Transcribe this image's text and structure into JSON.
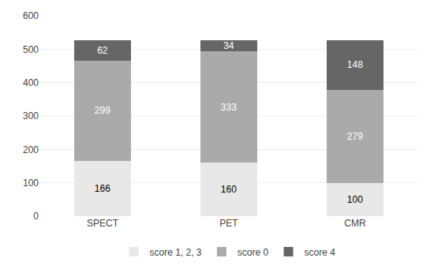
{
  "chart_data": {
    "type": "bar",
    "stacked": true,
    "data_labels": true,
    "grid": true,
    "legend": "bottom",
    "categories": [
      "SPECT",
      "PET",
      "CMR"
    ],
    "series": [
      {
        "name": "score 1, 2, 3",
        "color": "#e8e8e8",
        "values": [
          166,
          160,
          100
        ]
      },
      {
        "name": "score 0",
        "color": "#aaaaaa",
        "values": [
          299,
          333,
          279
        ]
      },
      {
        "name": "score 4",
        "color": "#666666",
        "values": [
          62,
          34,
          148
        ]
      }
    ],
    "ylim": [
      0,
      600
    ],
    "yticks": [
      0,
      100,
      200,
      300,
      400,
      500,
      600
    ]
  }
}
